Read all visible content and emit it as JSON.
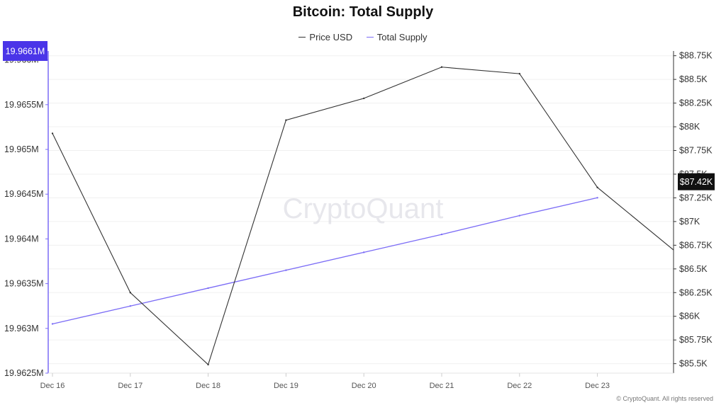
{
  "chart_data": {
    "type": "line",
    "title": "Bitcoin: Total Supply",
    "x": [
      "Dec 16",
      "Dec 17",
      "Dec 18",
      "Dec 19",
      "Dec 20",
      "Dec 21",
      "Dec 22",
      "Dec 23"
    ],
    "series": [
      {
        "name": "Price USD",
        "axis": "right",
        "color": "#333333",
        "values": [
          87930,
          86250,
          85490,
          88070,
          88300,
          88630,
          88560,
          87360
        ],
        "trailing_value": 86700
      },
      {
        "name": "Total Supply",
        "axis": "left",
        "color": "#7b6cf6",
        "values": [
          19.96305,
          19.96325,
          19.96345,
          19.96365,
          19.96385,
          19.96405,
          19.96426,
          19.96446
        ]
      }
    ],
    "y_left": {
      "ticks": [
        "19.966M",
        "19.9655M",
        "19.965M",
        "19.9645M",
        "19.964M",
        "19.9635M",
        "19.963M",
        "19.9625M"
      ],
      "tick_values": [
        19.966,
        19.9655,
        19.965,
        19.9645,
        19.964,
        19.9635,
        19.963,
        19.9625
      ],
      "range": [
        19.9625,
        19.9661
      ]
    },
    "y_right": {
      "ticks": [
        "$88.75K",
        "$88.5K",
        "$88.25K",
        "$88K",
        "$87.75K",
        "$87.5K",
        "$87.25K",
        "$87K",
        "$86.75K",
        "$86.5K",
        "$86.25K",
        "$86K",
        "$85.75K",
        "$85.5K"
      ],
      "tick_values": [
        88750,
        88500,
        88250,
        88000,
        87750,
        87500,
        87250,
        87000,
        86750,
        86500,
        86250,
        86000,
        85750,
        85500
      ],
      "range": [
        85400,
        88800
      ]
    },
    "current_left_label": "19.9661M",
    "current_right_label": "$87.42K",
    "current_right_value": 87420,
    "watermark": "CryptoQuant",
    "copyright": "© CryptoQuant. All rights reserved",
    "grid": true,
    "legend_position": "top-center"
  }
}
